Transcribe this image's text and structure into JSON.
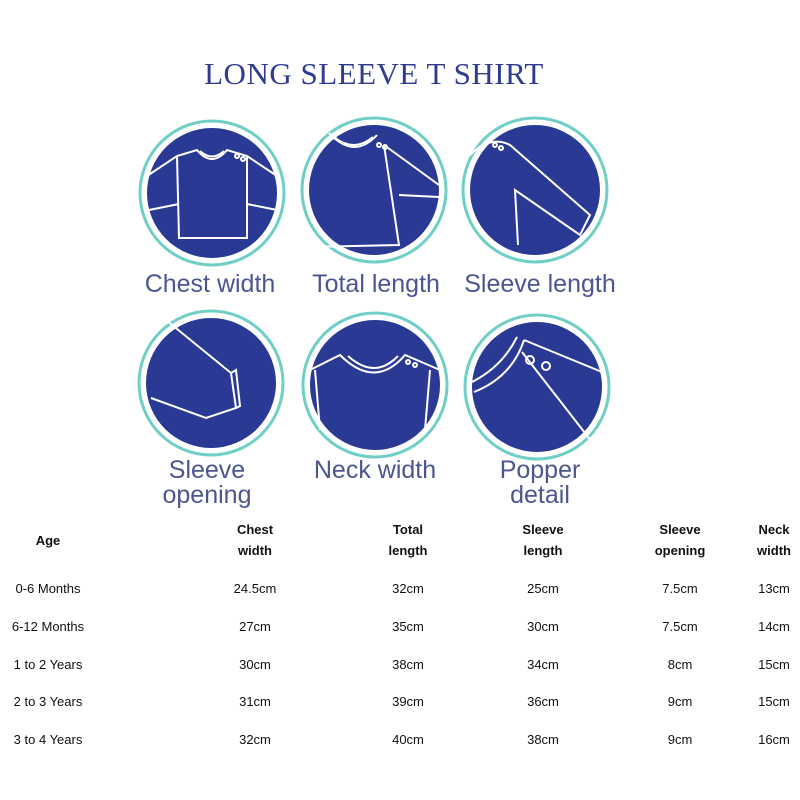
{
  "title": "LONG SLEEVE T SHIRT",
  "colors": {
    "navy": "#2a3a94",
    "ring": "#6fcfc4",
    "title": "#2f3b8f",
    "label": "#4d5590"
  },
  "measurements": [
    {
      "label": "Chest width",
      "icon": "shirt-front-icon"
    },
    {
      "label": "Total length",
      "icon": "shirt-length-icon"
    },
    {
      "label": "Sleeve length",
      "icon": "sleeve-length-icon"
    },
    {
      "label_line1": "Sleeve",
      "label_line2": "opening",
      "icon": "sleeve-cuff-icon"
    },
    {
      "label": "Neck width",
      "icon": "neckline-icon"
    },
    {
      "label_line1": "Popper",
      "label_line2": "detail",
      "icon": "popper-icon"
    }
  ],
  "table": {
    "headers": [
      {
        "l1": "Age",
        "l2": ""
      },
      {
        "l1": "Chest",
        "l2": "width"
      },
      {
        "l1": "Total",
        "l2": "length"
      },
      {
        "l1": "Sleeve",
        "l2": "length"
      },
      {
        "l1": "Sleeve",
        "l2": "opening"
      },
      {
        "l1": "Neck",
        "l2": "width"
      }
    ],
    "rows": [
      [
        "0-6 Months",
        "24.5cm",
        "32cm",
        "25cm",
        "7.5cm",
        "13cm"
      ],
      [
        "6-12 Months",
        "27cm",
        "35cm",
        "30cm",
        "7.5cm",
        "14cm"
      ],
      [
        "1 to 2 Years",
        "30cm",
        "38cm",
        "34cm",
        "8cm",
        "15cm"
      ],
      [
        "2 to 3 Years",
        "31cm",
        "39cm",
        "36cm",
        "9cm",
        "15cm"
      ],
      [
        "3 to 4 Years",
        "32cm",
        "40cm",
        "38cm",
        "9cm",
        "16cm"
      ]
    ]
  }
}
